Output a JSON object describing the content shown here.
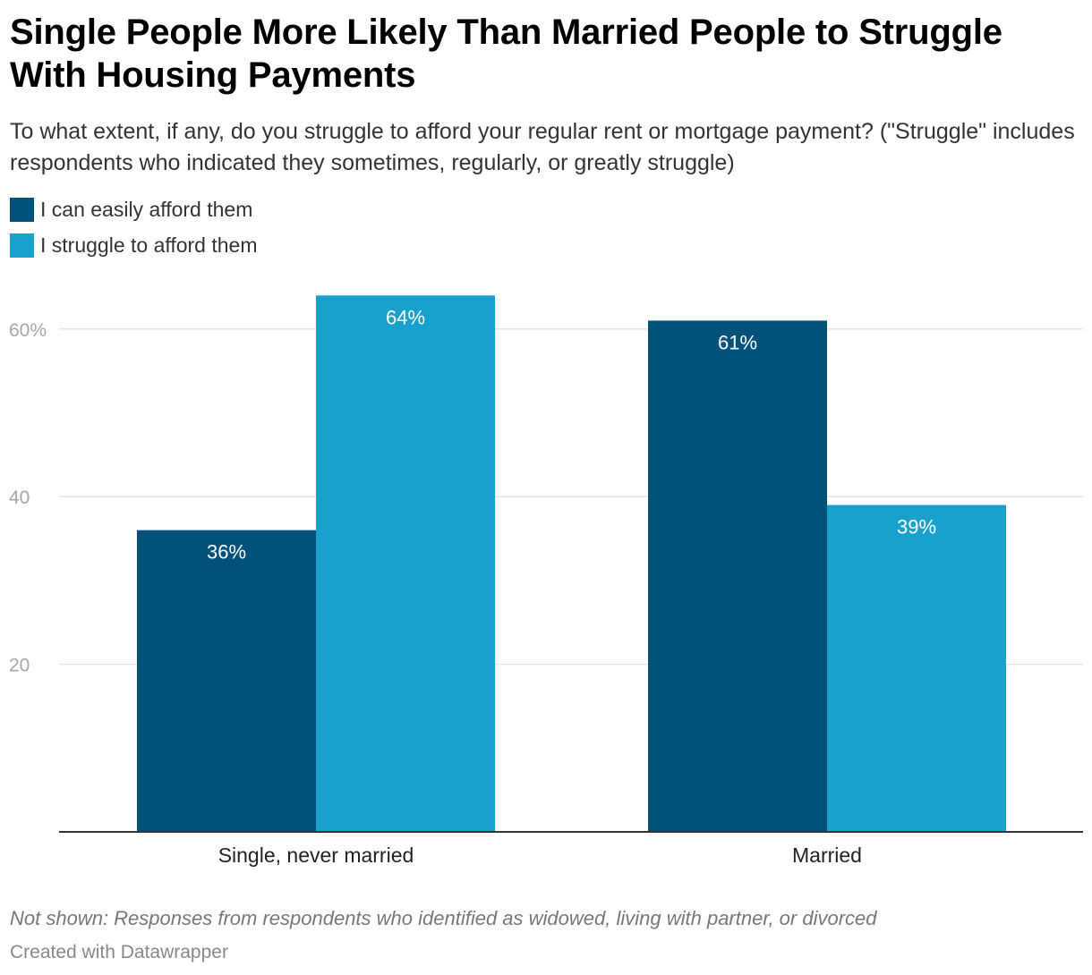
{
  "chart_data": {
    "type": "bar",
    "title": "Single People More Likely Than Married People to Struggle With Housing Payments",
    "subtitle": "To what extent, if any, do you struggle to afford your regular rent or mortgage payment? (\"Struggle\" includes respondents who indicated they sometimes, regularly, or greatly struggle)",
    "categories": [
      "Single, never married",
      "Married"
    ],
    "series": [
      {
        "name": "I can easily afford them",
        "values": [
          36,
          61
        ],
        "color": "#00527a"
      },
      {
        "name": "I struggle to afford them",
        "values": [
          64,
          39
        ],
        "color": "#18a1cd"
      }
    ],
    "value_labels": [
      [
        "36%",
        "61%"
      ],
      [
        "64%",
        "39%"
      ]
    ],
    "y_ticks": [
      20,
      40,
      60
    ],
    "y_tick_labels": [
      "20",
      "40",
      "60%"
    ],
    "ylim": [
      0,
      60
    ],
    "grid": true,
    "legend_position": "top-left",
    "xlabel": "",
    "ylabel": ""
  },
  "notes": "Not shown: Responses from respondents who identified as widowed, living with partner, or divorced",
  "byline": "Created with Datawrapper",
  "colors": {
    "grid": "#e3e3e3",
    "baseline": "#333333"
  }
}
